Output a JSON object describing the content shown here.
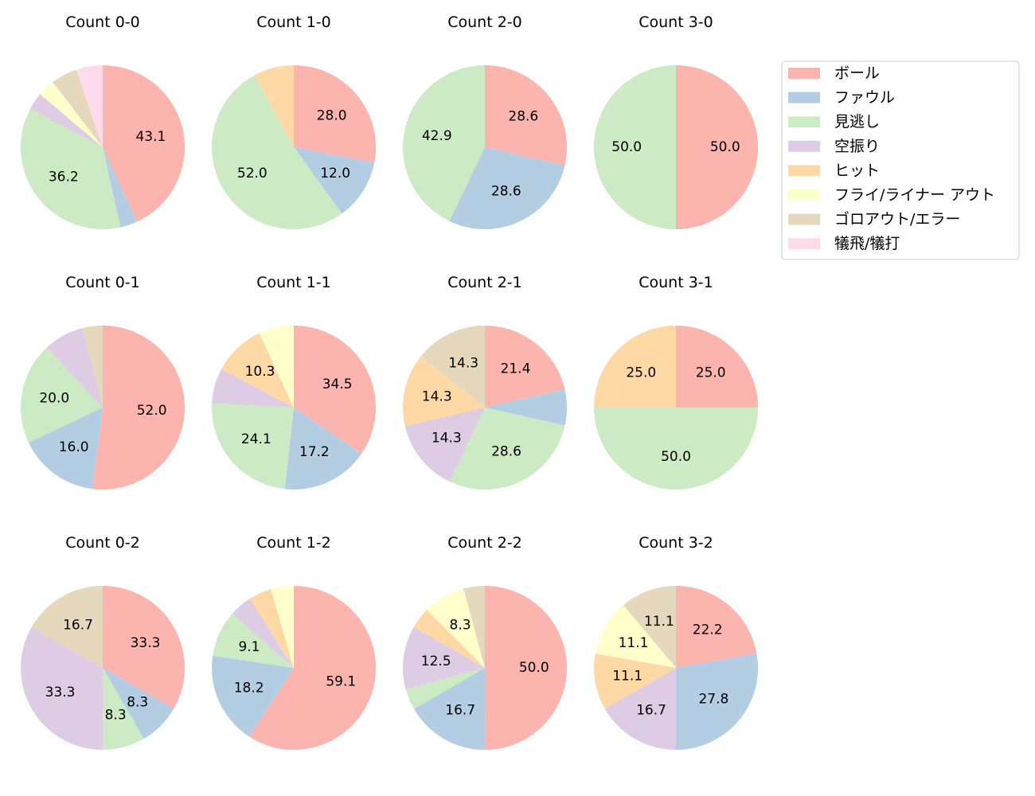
{
  "chart_data": {
    "type": "pie",
    "categories": [
      "ボール",
      "ファウル",
      "見逃し",
      "空振り",
      "ヒット",
      "フライ/ライナー アウト",
      "ゴロアウト/エラー",
      "犠飛/犠打"
    ],
    "colors": [
      "#fbb4ae",
      "#b3cde3",
      "#ccebc5",
      "#decbe4",
      "#fed9a6",
      "#ffffcc",
      "#e5d8bd",
      "#fddaec"
    ],
    "legend_position": "top-right",
    "start_angle_deg": 90,
    "direction": "clockwise",
    "label_threshold_percent": 8,
    "charts": [
      {
        "title": "Count 0-0",
        "values": [
          43.1,
          3.4,
          36.2,
          3.4,
          0,
          3.4,
          5.2,
          5.2
        ]
      },
      {
        "title": "Count 1-0",
        "values": [
          28.0,
          12.0,
          52.0,
          0,
          8.0,
          0,
          0,
          0
        ]
      },
      {
        "title": "Count 2-0",
        "values": [
          28.6,
          28.6,
          42.9,
          0,
          0,
          0,
          0,
          0
        ]
      },
      {
        "title": "Count 3-0",
        "values": [
          50.0,
          0,
          50.0,
          0,
          0,
          0,
          0,
          0
        ]
      },
      {
        "title": "Count 0-1",
        "values": [
          52.0,
          16.0,
          20.0,
          8.0,
          0,
          0,
          4.0,
          0
        ]
      },
      {
        "title": "Count 1-1",
        "values": [
          34.5,
          17.2,
          24.1,
          6.9,
          10.3,
          6.9,
          0,
          0
        ]
      },
      {
        "title": "Count 2-1",
        "values": [
          21.4,
          7.1,
          28.6,
          14.3,
          14.3,
          0,
          14.3,
          0
        ]
      },
      {
        "title": "Count 3-1",
        "values": [
          25.0,
          0,
          50.0,
          0,
          25.0,
          0,
          0,
          0
        ]
      },
      {
        "title": "Count 0-2",
        "values": [
          33.3,
          8.3,
          8.3,
          33.3,
          0,
          0,
          16.7,
          0
        ]
      },
      {
        "title": "Count 1-2",
        "values": [
          59.1,
          18.2,
          9.1,
          4.5,
          4.5,
          4.5,
          0,
          0
        ]
      },
      {
        "title": "Count 2-2",
        "values": [
          50.0,
          16.7,
          4.2,
          12.5,
          4.2,
          8.3,
          4.2,
          0
        ]
      },
      {
        "title": "Count 3-2",
        "values": [
          22.2,
          27.8,
          0,
          16.7,
          11.1,
          11.1,
          11.1,
          0
        ]
      }
    ]
  }
}
